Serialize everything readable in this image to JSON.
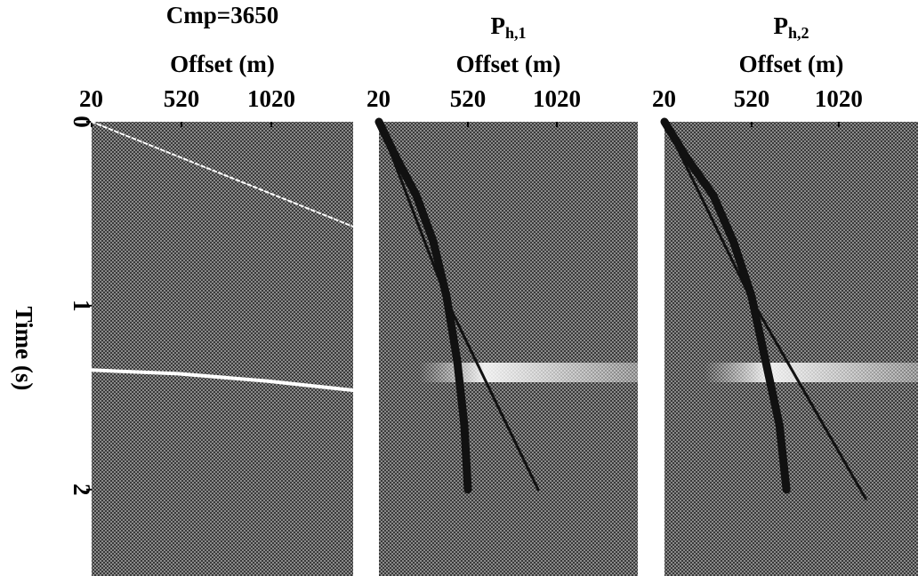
{
  "chart_data": [
    {
      "type": "seismic",
      "title": "Cmp=3650",
      "xlabel": "Offset (m)",
      "ylabel": "Time (s)",
      "xlim": [
        20,
        1475
      ],
      "xticks": [
        20,
        520,
        1020
      ],
      "ylim": [
        0,
        2.47
      ],
      "yticks": [
        0,
        1,
        2
      ],
      "series": [
        {
          "color": "#ffffff",
          "x": [
            20,
            1475
          ],
          "values": [
            0,
            0.57
          ]
        },
        {
          "color": "#ffffff",
          "x": [
            20,
            500,
            1000,
            1475
          ],
          "values": [
            1.35,
            1.37,
            1.41,
            1.46
          ]
        }
      ]
    },
    {
      "type": "seismic",
      "title": "P",
      "title_subscript": "h,1",
      "xlabel": "Offset (m)",
      "xlim": [
        20,
        1475
      ],
      "xticks": [
        20,
        520,
        1020
      ],
      "ylim": [
        0,
        2.47
      ],
      "series": [
        {
          "color": "#111111",
          "x": [
            20,
            120,
            230,
            325,
            400,
            460,
            500,
            520
          ],
          "values": [
            0,
            0.2,
            0.4,
            0.65,
            0.95,
            1.3,
            1.65,
            2.0
          ]
        },
        {
          "color": "#111111",
          "x": [
            20,
            415,
            915
          ],
          "values": [
            0,
            1.0,
            2.0
          ]
        }
      ]
    },
    {
      "type": "seismic",
      "title": "P",
      "title_subscript": "h,2",
      "xlabel": "Offset (m)",
      "xlim": [
        20,
        1475
      ],
      "xticks": [
        20,
        520,
        1020
      ],
      "ylim": [
        0,
        2.47
      ],
      "series": [
        {
          "color": "#111111",
          "x": [
            20,
            150,
            300,
            415,
            520,
            600,
            680,
            720
          ],
          "values": [
            0,
            0.2,
            0.4,
            0.65,
            0.95,
            1.3,
            1.65,
            2.0
          ]
        },
        {
          "color": "#111111",
          "x": [
            20,
            510,
            1175
          ],
          "values": [
            0,
            0.95,
            2.05
          ]
        }
      ]
    }
  ]
}
